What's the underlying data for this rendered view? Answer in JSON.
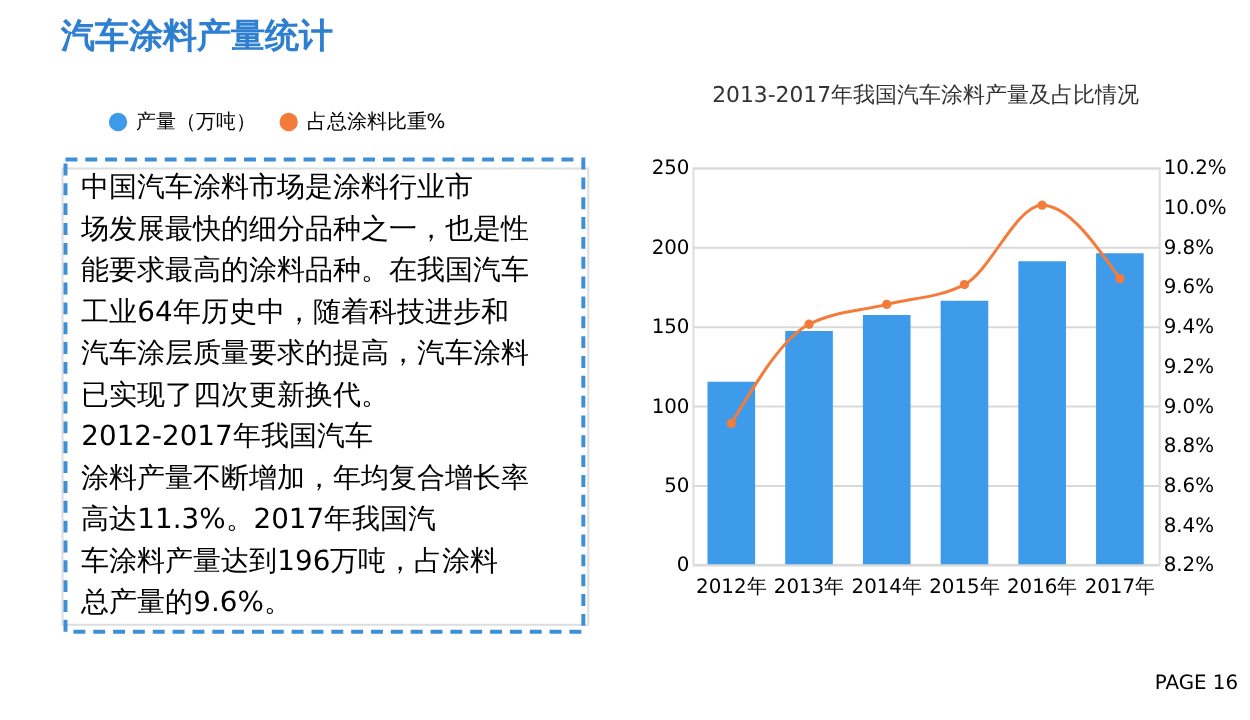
{
  "chart_data": {
    "type": "bar",
    "title": "汽车涂料产量统计",
    "subtitle": "2013-2017年我国汽车涂料产量及占比情况",
    "categories": [
      "2012年",
      "2013年",
      "2014年",
      "2015年",
      "2016年",
      "2017年"
    ],
    "series": [
      {
        "name": "产量（万吨）",
        "color": "#3d9be9",
        "values": [
          115,
          147,
          157,
          166,
          191,
          196
        ]
      },
      {
        "name": "占总涂料比重%",
        "type": "line",
        "axis": "y2",
        "color": "#f47b3a",
        "marker": "circle",
        "values": [
          8.91,
          9.41,
          9.51,
          9.61,
          10.01,
          9.64
        ]
      }
    ],
    "ylim": [
      0,
      250
    ],
    "yticks": [
      0,
      50,
      100,
      150,
      200,
      250
    ],
    "y2lim": [
      8.2,
      10.2
    ],
    "y2ticks": [
      {
        "value": 8.2,
        "label": "8.2%"
      },
      {
        "value": 8.4,
        "label": "8.4%"
      },
      {
        "value": 8.6,
        "label": "8.6%"
      },
      {
        "value": 8.8,
        "label": "8.8%"
      },
      {
        "value": 9.0,
        "label": "9.0%"
      },
      {
        "value": 9.2,
        "label": "9.2%"
      },
      {
        "value": 9.4,
        "label": "9.4%"
      },
      {
        "value": 9.6,
        "label": "9.6%"
      },
      {
        "value": 9.8,
        "label": "9.8%"
      },
      {
        "value": 10.0,
        "label": "10.0%"
      },
      {
        "value": 10.2,
        "label": "10.2%"
      }
    ],
    "grid": "y",
    "legend": "top",
    "annotations": [
      "中国汽车涂料市场是涂料行业市场发展最快的细分品种之一，也是性能要求最高的涂料品种。在我国汽车工业64年历史中，随着科技进步和汽车涂层质量要求的提高，汽车涂料已实现了四次更新换代。",
      "2012-2017年我国汽车涂料产量不断增加，年均复合增长率高达11.3%。2017年我国汽车涂料产量达到196万吨，占涂料总产量的9.6%。",
      "PAGE 16"
    ]
  }
}
